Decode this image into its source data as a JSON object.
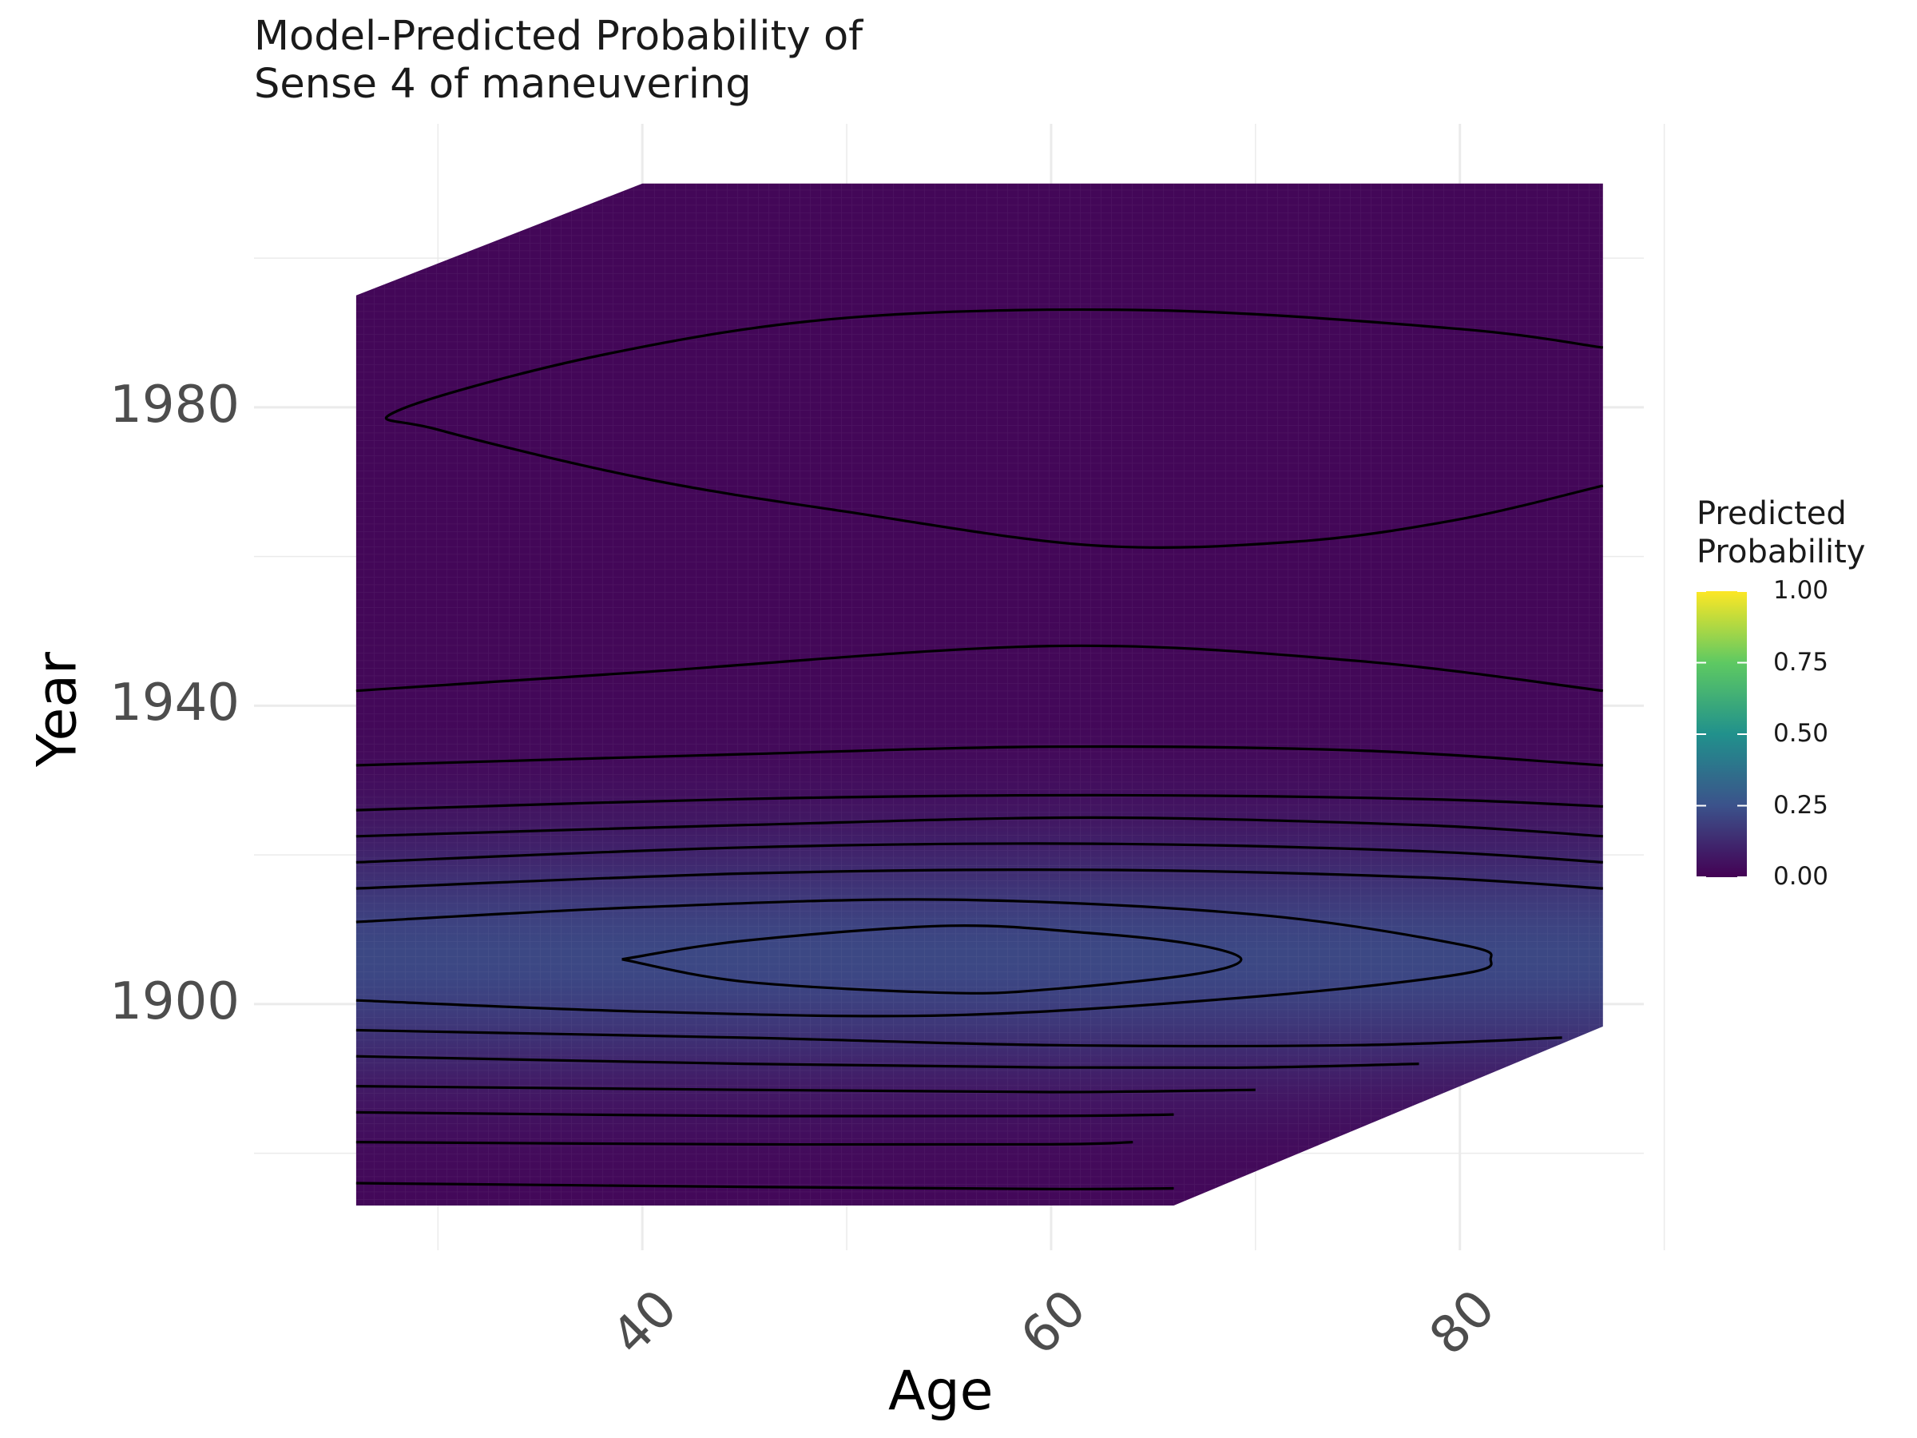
{
  "chart_data": {
    "type": "heatmap",
    "title": "Model-Predicted Probability of\nSense 4 of maneuvering",
    "title_lines": [
      "Model-Predicted Probability of",
      "Sense 4 of maneuvering"
    ],
    "xlabel": "Age",
    "ylabel": "Year",
    "xlim": [
      21,
      89
    ],
    "ylim": [
      1867,
      2018
    ],
    "x_ticks": [
      40,
      60,
      80
    ],
    "y_ticks": [
      1900,
      1940,
      1980
    ],
    "grid": true,
    "colormap": "viridis",
    "colors": {
      "low": "#440154",
      "q25": "#3b528b",
      "mid": "#21918c",
      "q75": "#5ec962",
      "high": "#fde725",
      "contour": "#000000",
      "grid": "#ebebeb"
    },
    "data_region": {
      "age_range": [
        26,
        87
      ],
      "year_range": [
        1873,
        2010
      ],
      "bottom_edge": [
        [
          26,
          1873
        ],
        [
          66,
          1873
        ],
        [
          87,
          1897
        ]
      ],
      "top_edge": [
        [
          26,
          1995
        ],
        [
          40,
          2010
        ],
        [
          87,
          2010
        ]
      ]
    },
    "surface": {
      "peak": {
        "age": 55,
        "year": 1906,
        "probability": 0.22
      },
      "background_probability": 0.02
    },
    "contours": [
      {
        "type": "closed",
        "points": [
          [
            39,
            1906
          ],
          [
            45,
            1908.5
          ],
          [
            55,
            1910.5
          ],
          [
            62,
            1909.5
          ],
          [
            67,
            1908
          ],
          [
            69.3,
            1906
          ],
          [
            67,
            1904
          ],
          [
            60,
            1902
          ],
          [
            55,
            1901.5
          ],
          [
            45,
            1903
          ],
          [
            39,
            1906
          ]
        ]
      },
      {
        "type": "closed_open",
        "points": [
          [
            26,
            1911
          ],
          [
            40,
            1913
          ],
          [
            55,
            1914
          ],
          [
            70,
            1912
          ],
          [
            80,
            1908
          ],
          [
            81.5,
            1906
          ],
          [
            80,
            1904
          ],
          [
            70,
            1901
          ],
          [
            55,
            1898.5
          ],
          [
            40,
            1899
          ],
          [
            26,
            1900.5
          ]
        ]
      },
      {
        "type": "open",
        "points": [
          [
            26,
            1915.5
          ],
          [
            45,
            1917.5
          ],
          [
            62,
            1918
          ],
          [
            78,
            1917
          ],
          [
            87,
            1915.5
          ]
        ]
      },
      {
        "type": "open",
        "points": [
          [
            26,
            1919
          ],
          [
            45,
            1921
          ],
          [
            62,
            1921.5
          ],
          [
            78,
            1920.5
          ],
          [
            87,
            1919
          ]
        ]
      },
      {
        "type": "open",
        "points": [
          [
            26,
            1922.5
          ],
          [
            45,
            1924
          ],
          [
            62,
            1925
          ],
          [
            78,
            1924
          ],
          [
            87,
            1922.5
          ]
        ]
      },
      {
        "type": "open",
        "points": [
          [
            26,
            1926
          ],
          [
            45,
            1927.5
          ],
          [
            62,
            1928
          ],
          [
            78,
            1927.5
          ],
          [
            87,
            1926.5
          ]
        ]
      },
      {
        "type": "open",
        "points": [
          [
            26,
            1932
          ],
          [
            45,
            1933.5
          ],
          [
            60,
            1934.5
          ],
          [
            75,
            1934
          ],
          [
            87,
            1932
          ]
        ]
      },
      {
        "type": "open",
        "points": [
          [
            26,
            1942
          ],
          [
            40,
            1944.5
          ],
          [
            60,
            1948
          ],
          [
            75,
            1946
          ],
          [
            87,
            1942
          ]
        ]
      },
      {
        "type": "closed_open",
        "points": [
          [
            87,
            1988
          ],
          [
            80,
            1990.5
          ],
          [
            65,
            1993
          ],
          [
            50,
            1992
          ],
          [
            38,
            1987
          ],
          [
            28,
            1979.5
          ],
          [
            30,
            1977
          ],
          [
            40,
            1970.5
          ],
          [
            50,
            1966
          ],
          [
            62,
            1961.5
          ],
          [
            72,
            1962
          ],
          [
            80,
            1965
          ],
          [
            87,
            1969.5
          ]
        ]
      },
      {
        "type": "open",
        "points": [
          [
            26,
            1896.5
          ],
          [
            45,
            1895.5
          ],
          [
            60,
            1894.5
          ],
          [
            75,
            1894.5
          ],
          [
            85,
            1895.5
          ]
        ]
      },
      {
        "type": "open",
        "points": [
          [
            26,
            1893
          ],
          [
            45,
            1892
          ],
          [
            60,
            1891.5
          ],
          [
            70,
            1891.5
          ],
          [
            78,
            1892
          ]
        ]
      },
      {
        "type": "open",
        "points": [
          [
            26,
            1889
          ],
          [
            45,
            1888.5
          ],
          [
            60,
            1888.2
          ],
          [
            70,
            1888.5
          ]
        ]
      },
      {
        "type": "open",
        "points": [
          [
            26,
            1885.5
          ],
          [
            45,
            1885
          ],
          [
            60,
            1885
          ],
          [
            66,
            1885.2
          ]
        ]
      },
      {
        "type": "open",
        "points": [
          [
            26,
            1881.5
          ],
          [
            45,
            1881.2
          ],
          [
            60,
            1881.2
          ],
          [
            64,
            1881.5
          ]
        ]
      },
      {
        "type": "open",
        "points": [
          [
            26,
            1876
          ],
          [
            45,
            1875.5
          ],
          [
            60,
            1875.2
          ],
          [
            66,
            1875.3
          ]
        ]
      }
    ],
    "legend": {
      "title": "Predicted\nProbability",
      "title_lines": [
        "Predicted",
        "Probability"
      ],
      "placement": "right",
      "range": [
        0,
        1
      ],
      "ticks": [
        0,
        0.25,
        0.5,
        0.75,
        1
      ],
      "tick_labels": [
        "0.00",
        "0.25",
        "0.50",
        "0.75",
        "1.00"
      ]
    }
  }
}
